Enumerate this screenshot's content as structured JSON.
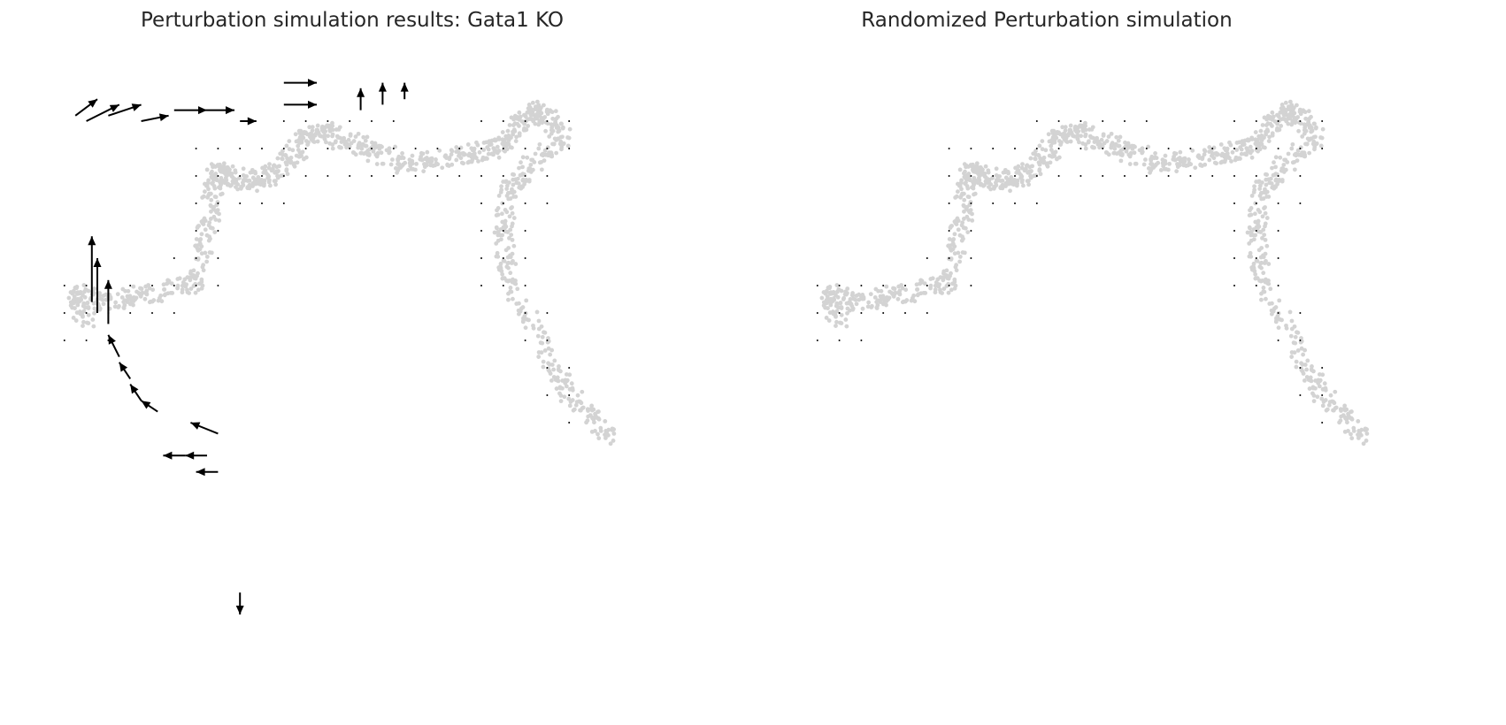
{
  "chart_data": [
    {
      "type": "scatter",
      "title": "Perturbation simulation results: Gata1 KO",
      "point_color": "#d3d3d3",
      "arrow_color": "#000000",
      "axes_visible": false,
      "grid": false,
      "trajectory": [
        [
          0.08,
          0.58
        ],
        [
          0.06,
          0.64
        ],
        [
          0.1,
          0.62
        ],
        [
          0.16,
          0.63
        ],
        [
          0.22,
          0.64
        ],
        [
          0.28,
          0.66
        ],
        [
          0.3,
          0.75
        ],
        [
          0.31,
          0.82
        ],
        [
          0.32,
          0.86
        ],
        [
          0.34,
          0.85
        ],
        [
          0.38,
          0.84
        ],
        [
          0.42,
          0.85
        ],
        [
          0.45,
          0.88
        ],
        [
          0.48,
          0.92
        ],
        [
          0.52,
          0.93
        ],
        [
          0.56,
          0.91
        ],
        [
          0.6,
          0.9
        ],
        [
          0.66,
          0.87
        ],
        [
          0.72,
          0.88
        ],
        [
          0.78,
          0.89
        ],
        [
          0.83,
          0.9
        ],
        [
          0.86,
          0.93
        ],
        [
          0.89,
          0.97
        ],
        [
          0.92,
          0.96
        ],
        [
          0.95,
          0.92
        ],
        [
          0.88,
          0.86
        ],
        [
          0.85,
          0.82
        ],
        [
          0.84,
          0.74
        ],
        [
          0.85,
          0.66
        ],
        [
          0.9,
          0.56
        ],
        [
          0.95,
          0.47
        ],
        [
          0.99,
          0.42
        ],
        [
          1.04,
          0.37
        ]
      ],
      "vectors": [
        {
          "x": 0.1,
          "y": 0.6,
          "dx": 0.0,
          "dy": 0.1
        },
        {
          "x": 0.09,
          "y": 0.62,
          "dx": 0.0,
          "dy": 0.12
        },
        {
          "x": 0.12,
          "y": 0.58,
          "dx": 0.0,
          "dy": 0.08
        },
        {
          "x": 0.14,
          "y": 0.52,
          "dx": -0.02,
          "dy": 0.04
        },
        {
          "x": 0.16,
          "y": 0.48,
          "dx": -0.02,
          "dy": 0.03
        },
        {
          "x": 0.18,
          "y": 0.44,
          "dx": -0.02,
          "dy": 0.03
        },
        {
          "x": 0.21,
          "y": 0.42,
          "dx": -0.03,
          "dy": 0.02
        },
        {
          "x": 0.32,
          "y": 0.38,
          "dx": -0.05,
          "dy": 0.02
        },
        {
          "x": 0.3,
          "y": 0.34,
          "dx": -0.04,
          "dy": 0.0
        },
        {
          "x": 0.26,
          "y": 0.34,
          "dx": -0.04,
          "dy": 0.0
        },
        {
          "x": 0.32,
          "y": 0.31,
          "dx": -0.04,
          "dy": 0.0
        },
        {
          "x": 0.36,
          "y": 0.09,
          "dx": 0.0,
          "dy": -0.04
        },
        {
          "x": 0.06,
          "y": 0.96,
          "dx": 0.04,
          "dy": 0.03
        },
        {
          "x": 0.08,
          "y": 0.95,
          "dx": 0.06,
          "dy": 0.03
        },
        {
          "x": 0.12,
          "y": 0.96,
          "dx": 0.06,
          "dy": 0.02
        },
        {
          "x": 0.18,
          "y": 0.95,
          "dx": 0.05,
          "dy": 0.01
        },
        {
          "x": 0.24,
          "y": 0.97,
          "dx": 0.06,
          "dy": 0.0
        },
        {
          "x": 0.3,
          "y": 0.97,
          "dx": 0.05,
          "dy": 0.0
        },
        {
          "x": 0.36,
          "y": 0.95,
          "dx": 0.03,
          "dy": 0.0
        },
        {
          "x": 0.44,
          "y": 1.02,
          "dx": 0.06,
          "dy": 0.0
        },
        {
          "x": 0.44,
          "y": 0.98,
          "dx": 0.06,
          "dy": 0.0
        },
        {
          "x": 0.58,
          "y": 0.97,
          "dx": 0.0,
          "dy": 0.04
        },
        {
          "x": 0.62,
          "y": 0.98,
          "dx": 0.0,
          "dy": 0.04
        },
        {
          "x": 0.66,
          "y": 0.99,
          "dx": 0.0,
          "dy": 0.03
        }
      ]
    },
    {
      "type": "scatter",
      "title": "Randomized Perturbation simulation",
      "point_color": "#d3d3d3",
      "arrow_color": "#000000",
      "axes_visible": false,
      "grid": false,
      "vectors": []
    }
  ]
}
